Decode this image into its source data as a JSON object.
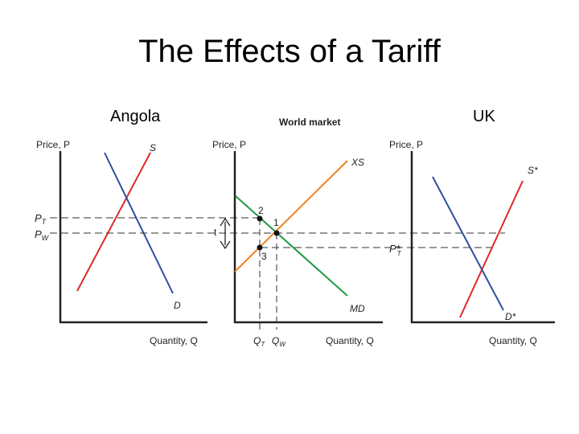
{
  "title": "The Effects of a Tariff",
  "countries": {
    "left": "Angola",
    "right": "UK"
  },
  "panels": {
    "left": {
      "y_axis_label": "Price, P",
      "x_axis_label": "Quantity, Q",
      "supply_label": "S",
      "demand_label": "D",
      "price_labels": {
        "tariff_price": "P",
        "tariff_price_sub": "T",
        "world_price": "P",
        "world_price_sub": "W"
      }
    },
    "middle": {
      "heading": "World market",
      "y_axis_label": "Price, P",
      "x_axis_label": "Quantity, Q",
      "export_supply_label": "XS",
      "import_demand_label": "MD",
      "tariff_label": "t",
      "points": [
        "2",
        "1",
        "3"
      ],
      "quantity_labels": {
        "q_tariff": "Q",
        "q_tariff_sub": "T",
        "q_world": "Q",
        "q_world_sub": "W"
      }
    },
    "right": {
      "y_axis_label": "Price, P",
      "x_axis_label": "Quantity, Q",
      "supply_label": "S*",
      "demand_label": "D*",
      "price_label": "P*",
      "price_label_sub": "T"
    }
  },
  "colors": {
    "supply": "#e0282b",
    "demand": "#2b4f9e",
    "export_supply": "#f0821e",
    "import_demand": "#1f9a47",
    "axis": "#222222",
    "dashed": "#333333"
  }
}
